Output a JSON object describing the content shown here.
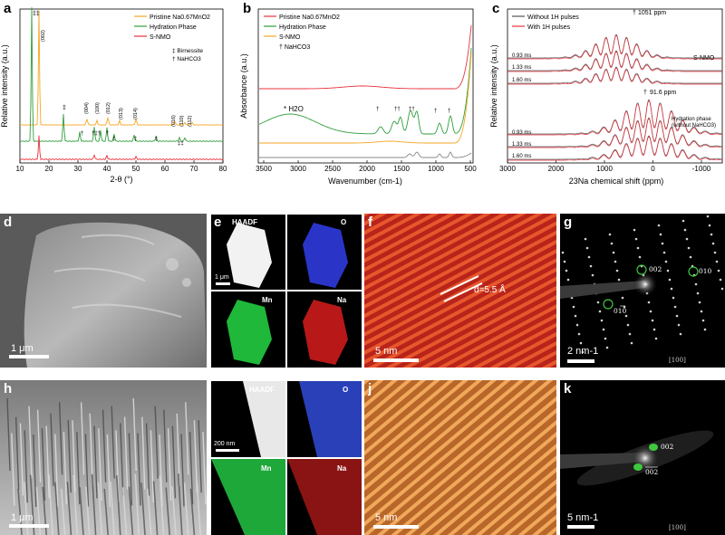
{
  "panels": {
    "a": {
      "letter": "a",
      "ylabel": "Relative intensity (a.u.)",
      "xlabel": "2-θ (°)",
      "xticks": [
        "10",
        "20",
        "30",
        "40",
        "50",
        "60",
        "70",
        "80"
      ],
      "legend": [
        "Pristine Na0.67MnO2",
        "Hydration Phase",
        "S-NMO"
      ],
      "legend_colors": [
        "#f5a623",
        "#2e9e3a",
        "#e8323c"
      ],
      "key_birnessite": "‡  Birnessite",
      "key_nahco3": "†  NaHCO3",
      "peak_labels": [
        "(002)",
        "(004)",
        "(100)",
        "(012)",
        "(013)",
        "(014)",
        "(016)",
        "(110)",
        "(112)"
      ]
    },
    "b": {
      "letter": "b",
      "ylabel": "Absorbance (a.u.)",
      "xlabel": "Wavenumber (cm-1)",
      "xticks": [
        "3500",
        "3000",
        "2500",
        "2000",
        "1500",
        "1000",
        "500"
      ],
      "legend": [
        "Pristine Na0.67MnO2",
        "Hydration Phase",
        "S-NMO",
        "† NaHCO3"
      ],
      "legend_colors": [
        "#e8323c",
        "#2e9e3a",
        "#f5a623",
        "#888888"
      ],
      "h2o_label": "* H2O"
    },
    "c": {
      "letter": "c",
      "ylabel": "Relative intensity (a.u.)",
      "xlabel": "23Na chemical shift (ppm)",
      "xticks": [
        "3000",
        "2000",
        "1000",
        "0",
        "-1000"
      ],
      "legend": [
        "Without 1H pulses",
        "With 1H pulses"
      ],
      "legend_colors": [
        "#555555",
        "#e8323c"
      ],
      "upper_peak": "1051 ppm",
      "lower_peak": "91.6 ppm",
      "upper_name": "S-NMO",
      "lower_name": "Hydration phase (without NaHCO3)",
      "times_upper": [
        "0.93 ms",
        "1.33 ms",
        "1.60 ms"
      ],
      "times_lower": [
        "0.93 ms",
        "1.33 ms",
        "1.60 ms"
      ]
    },
    "d": {
      "letter": "d",
      "scale": "1 μm"
    },
    "e": {
      "letter": "e",
      "tiles": [
        "HAADF",
        "O",
        "Mn",
        "Na"
      ],
      "scale": "1 μm"
    },
    "f": {
      "letter": "f",
      "dlabel": "d=5.5 Å",
      "scale": "5 nm"
    },
    "g": {
      "letter": "g",
      "spots": [
        "002",
        "010",
        "010"
      ],
      "scale": "2 nm-1",
      "zone": "[100]"
    },
    "h": {
      "letter": "h",
      "scale": "1 μm"
    },
    "i": {
      "letter": "i",
      "tiles": [
        "HAADF",
        "O",
        "Mn",
        "Na"
      ],
      "scale": "200 nm"
    },
    "j": {
      "letter": "j",
      "scale": "5 nm"
    },
    "k": {
      "letter": "k",
      "spots": [
        "002",
        "002"
      ],
      "scale": "5 nm-1",
      "zone": "[100]"
    }
  }
}
